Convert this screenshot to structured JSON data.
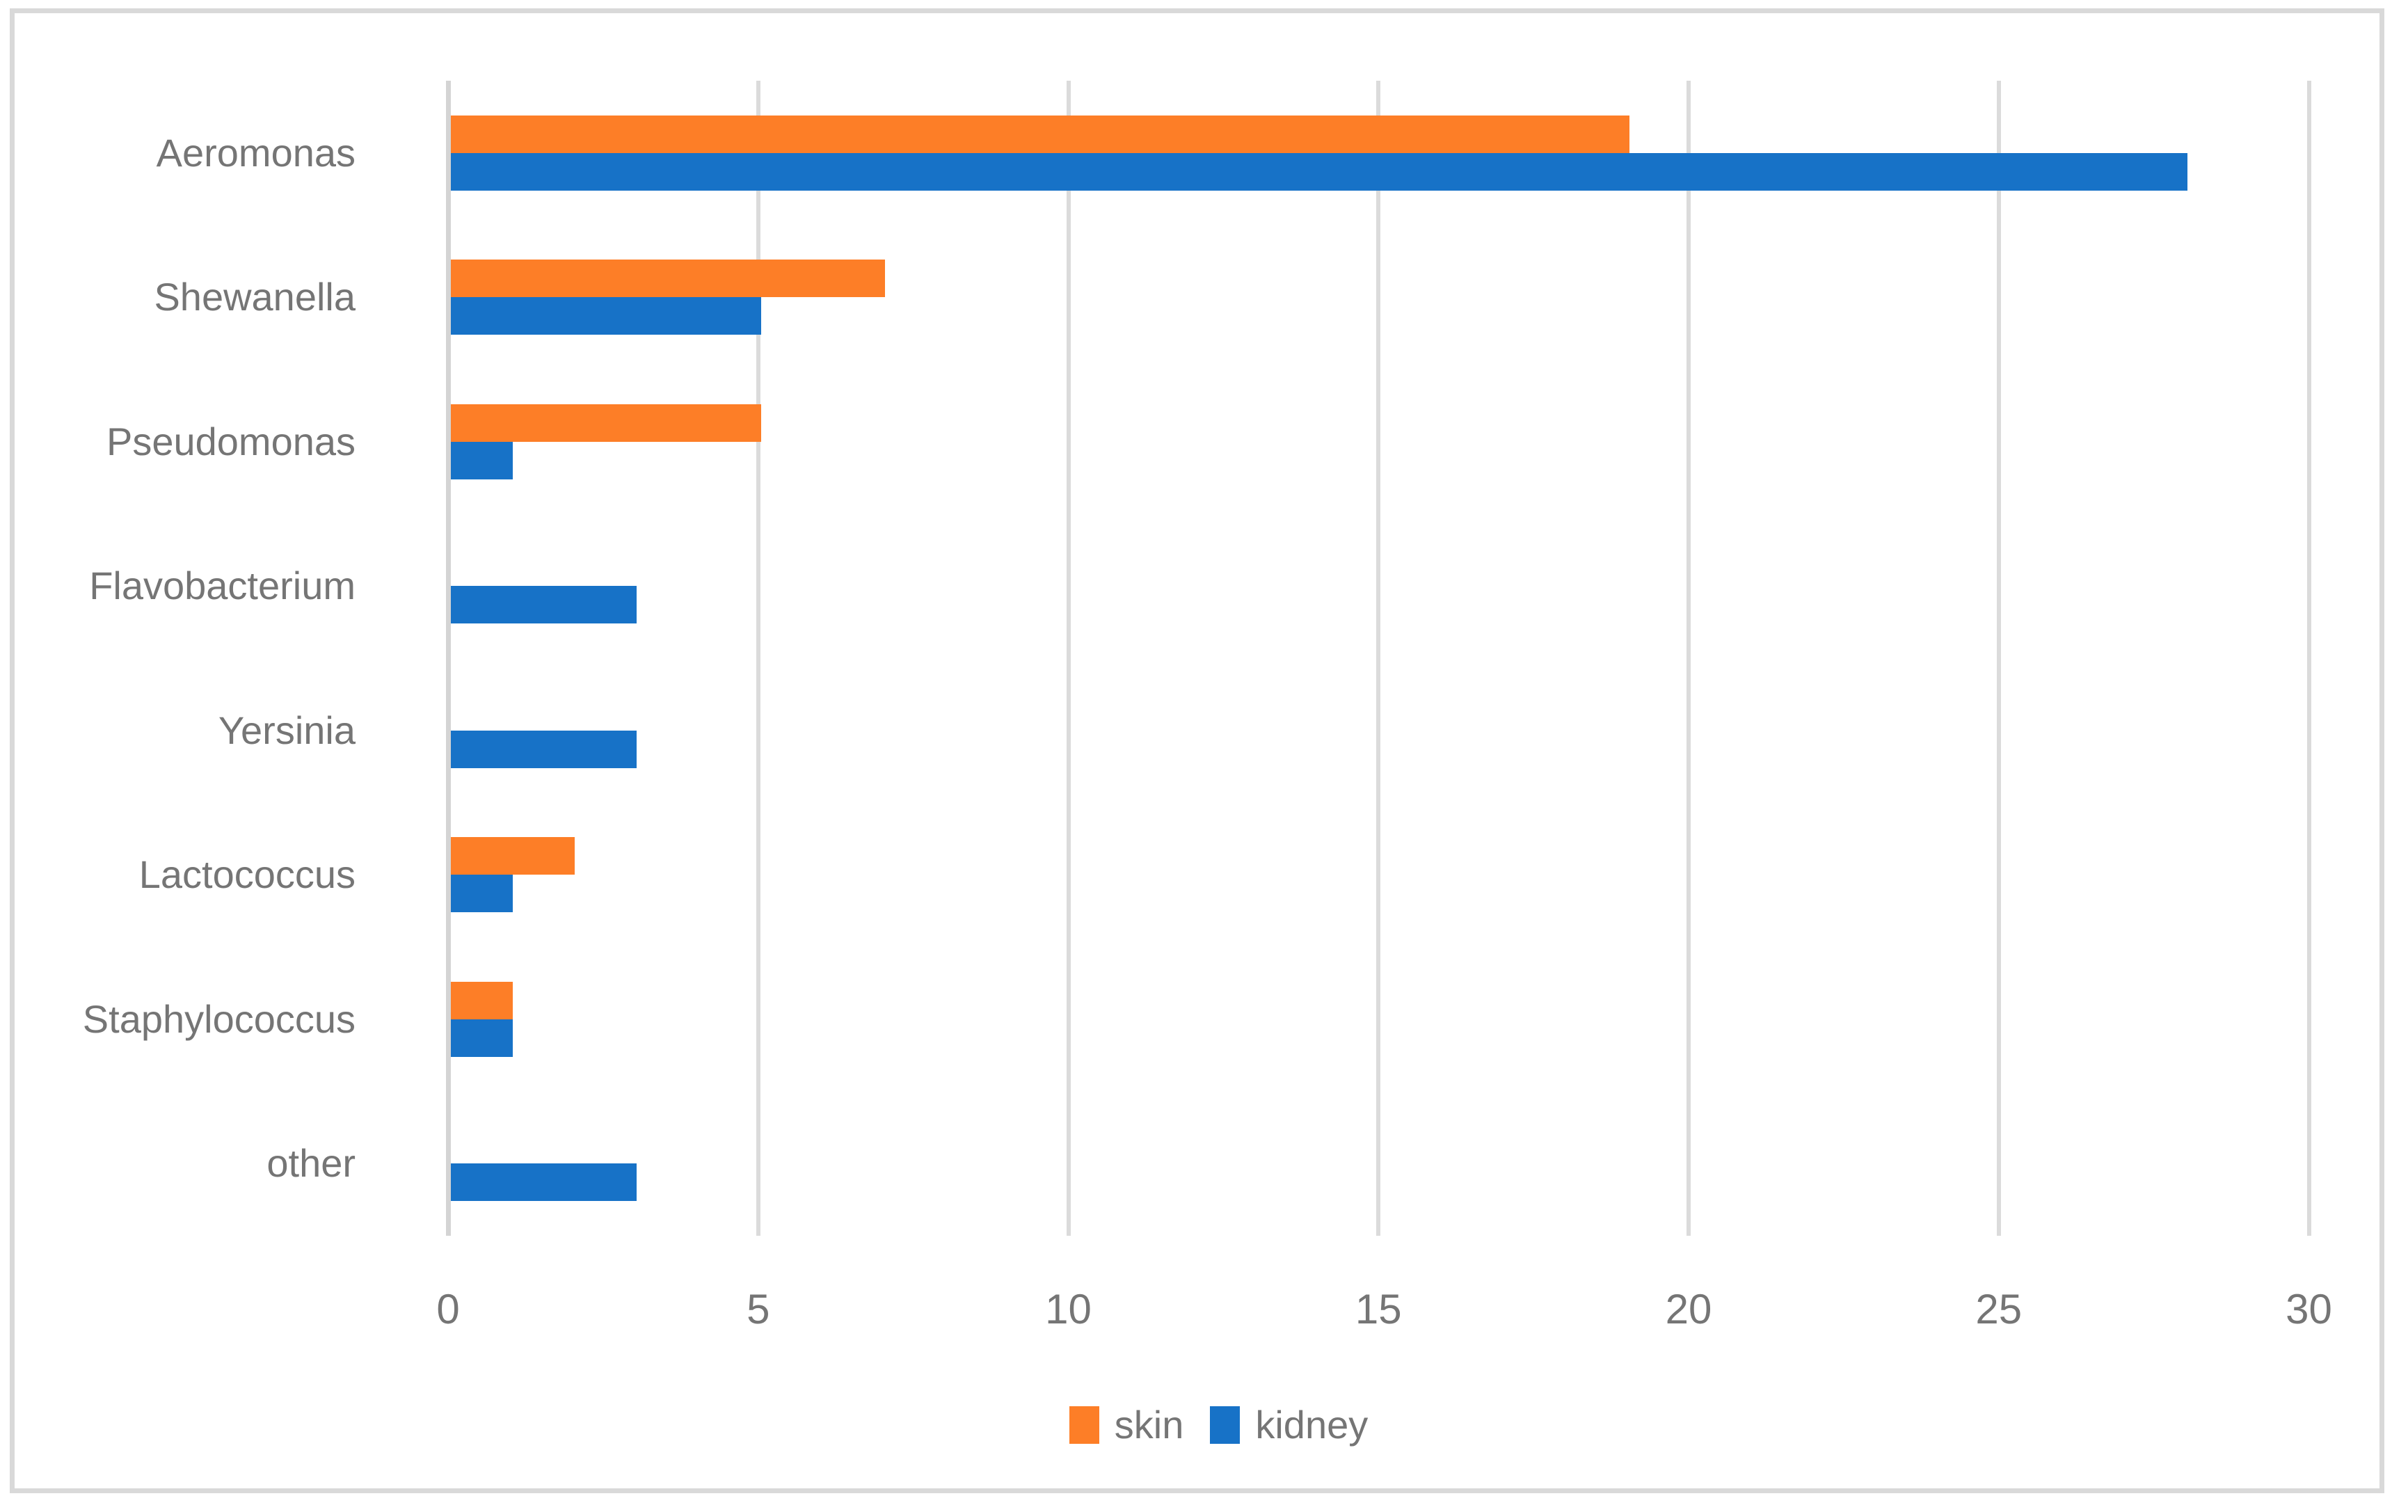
{
  "chart_data": {
    "type": "bar",
    "orientation": "horizontal",
    "title": "",
    "xlabel": "",
    "ylabel": "",
    "categories": [
      "Aeromonas",
      "Shewanella",
      "Pseudomonas",
      "Flavobacterium",
      "Yersinia",
      "Lactococcus",
      "Staphylococcus",
      "other"
    ],
    "series": [
      {
        "name": "skin",
        "color": "#FD7E27",
        "values": [
          19,
          7,
          5,
          0,
          0,
          2,
          1,
          0
        ]
      },
      {
        "name": "kidney",
        "color": "#1772C7",
        "values": [
          28,
          5,
          1,
          3,
          3,
          1,
          1,
          3
        ]
      }
    ],
    "x_ticks": [
      0,
      5,
      10,
      15,
      20,
      25,
      30
    ],
    "xlim": [
      0,
      31.4
    ],
    "grid": "vertical-only",
    "legend_position": "bottom-center"
  },
  "style_colors": {
    "gridline": "#DBDBDB",
    "zero_axis": "#D4D4D4",
    "frame_border": "#D9D9D9",
    "text": "#757575",
    "background": "#FFFFFF"
  }
}
